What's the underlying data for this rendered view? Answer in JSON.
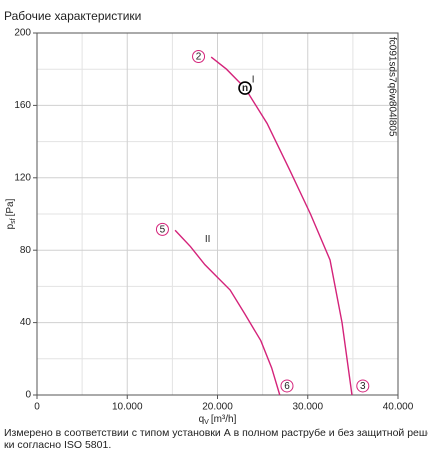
{
  "chart_data": {
    "type": "line",
    "title": "Рабочие характеристики",
    "xlabel": {
      "main": "q",
      "sub": "V",
      "unit": "[m³/h]"
    },
    "ylabel": {
      "main": "p",
      "sub": "sf",
      "unit": "[Pa]"
    },
    "xlim": [
      0,
      40000
    ],
    "ylim": [
      0,
      200
    ],
    "xticks": [
      0,
      {
        "value": 10000,
        "label": "10.000"
      },
      {
        "value": 20000,
        "label": "20.000"
      },
      {
        "value": 30000,
        "label": "30.000"
      },
      {
        "value": 40000,
        "label": "40.000"
      }
    ],
    "xminor": [
      5000,
      15000,
      25000,
      35000
    ],
    "yticks": [
      0,
      40,
      80,
      120,
      160,
      200
    ],
    "yminor": [
      20,
      60,
      100,
      140,
      180
    ],
    "grid": true,
    "series": [
      {
        "name": "I",
        "color": "#d4237a",
        "x": [
          19300,
          21000,
          23050,
          25500,
          28030,
          30300,
          32470,
          33800,
          34900
        ],
        "values": [
          186.7,
          180,
          169.6,
          150,
          124,
          100,
          74.6,
          40,
          0
        ]
      },
      {
        "name": "II",
        "color": "#d4237a",
        "x": [
          15300,
          17000,
          18600,
          20000,
          21400,
          23000,
          24800,
          26000,
          26900
        ],
        "values": [
          91,
          82,
          72,
          65,
          58,
          45,
          30,
          15,
          0
        ]
      }
    ],
    "markers": [
      {
        "label": "2",
        "x": 17900,
        "y": 187,
        "color": "#d4237a"
      },
      {
        "label": "5",
        "x": 13900,
        "y": 91.5,
        "color": "#d4237a"
      },
      {
        "label": "6",
        "x": 27700,
        "y": 5,
        "color": "#d4237a"
      },
      {
        "label": "3",
        "x": 36100,
        "y": 5,
        "color": "#d4237a"
      },
      {
        "label": "n",
        "x": 23050,
        "y": 169.6,
        "color": "#000"
      }
    ],
    "series_labels": [
      {
        "text": "I",
        "x": 23800,
        "y": 174,
        "color": "#d4237a"
      },
      {
        "text": "II",
        "x": 18600,
        "y": 86,
        "color": "#d4237a"
      }
    ],
    "code": "fc091sds7q6w804l805",
    "footnote": [
      "Измерено в соответствии с типом установки А в полном раструбе и без защитной решет-",
      "ки согласно ISO 5801."
    ]
  }
}
